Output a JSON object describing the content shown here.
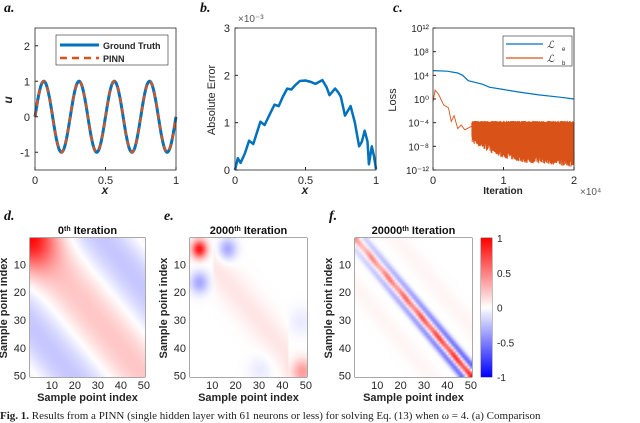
{
  "caption": {
    "label": "Fig. 1.",
    "text": "Results from a PINN (single hidden layer with 61 neurons or less) for solving Eq. (13) when ω = 4. (a) Comparison"
  },
  "chart_data": [
    {
      "panel": "a.",
      "type": "line",
      "xlabel": "x",
      "ylabel": "u",
      "xlim": [
        0,
        1
      ],
      "ylim": [
        -1.5,
        2.5
      ],
      "xticks": [
        "0",
        "0.5",
        "1"
      ],
      "xtick_values": [
        0,
        0.5,
        1
      ],
      "yticks": [
        "-1",
        "0",
        "1",
        "2"
      ],
      "ytick_values": [
        -1,
        0,
        1,
        2
      ],
      "legend_position": "top-right",
      "series": [
        {
          "name": "Ground Truth",
          "function": "sin(8πx)",
          "color": "#0072BD",
          "style": "solid"
        },
        {
          "name": "PINN",
          "function": "sin(8πx)",
          "color": "#D95319",
          "style": "dashed"
        }
      ]
    },
    {
      "panel": "b.",
      "type": "line",
      "xlabel": "x",
      "ylabel": "Absolute Error",
      "y_multiplier": "×10⁻³",
      "xlim": [
        0,
        1
      ],
      "ylim": [
        0,
        3
      ],
      "xticks": [
        "0",
        "0.5",
        "1"
      ],
      "xtick_values": [
        0,
        0.5,
        1
      ],
      "yticks": [
        "0",
        "1",
        "2",
        "3"
      ],
      "ytick_values": [
        0,
        1,
        2,
        3
      ],
      "series": [
        {
          "color": "#0072BD",
          "x": [
            0,
            0.02,
            0.04,
            0.07,
            0.1,
            0.13,
            0.18,
            0.21,
            0.25,
            0.28,
            0.31,
            0.34,
            0.37,
            0.4,
            0.43,
            0.46,
            0.5,
            0.54,
            0.57,
            0.62,
            0.65,
            0.67,
            0.71,
            0.73,
            0.75,
            0.78,
            0.82,
            0.85,
            0.88,
            0.9,
            0.92,
            0.94,
            0.95,
            0.97,
            0.985,
            1.0
          ],
          "y": [
            0.0,
            0.25,
            0.15,
            0.35,
            0.62,
            0.55,
            1.02,
            0.95,
            1.2,
            1.38,
            1.35,
            1.55,
            1.72,
            1.7,
            1.8,
            1.88,
            1.89,
            1.86,
            1.82,
            1.9,
            1.75,
            1.58,
            1.72,
            1.65,
            1.55,
            1.15,
            1.35,
            1.0,
            0.5,
            0.6,
            0.83,
            0.6,
            0.12,
            0.5,
            0.3,
            0.02
          ]
        }
      ]
    },
    {
      "panel": "c.",
      "type": "line",
      "xlabel": "Iteration",
      "ylabel": "Loss",
      "x_multiplier": "×10⁴",
      "xlim": [
        0,
        2
      ],
      "ylim": [
        1e-12,
        1000000000000.0
      ],
      "yscale": "log",
      "xticks": [
        "0",
        "1",
        "2"
      ],
      "xtick_values": [
        0,
        1,
        2
      ],
      "yticks": [
        "10⁻¹²",
        "10⁻⁸",
        "10⁻⁴",
        "10⁰",
        "10⁴",
        "10⁸",
        "10¹²"
      ],
      "ytick_exponents": [
        -12,
        -8,
        -4,
        0,
        4,
        8,
        12
      ],
      "legend_position": "top-right",
      "series": [
        {
          "name": "ℒ_e",
          "legend_main": "ℒ",
          "legend_sub": "e",
          "color": "#0072BD",
          "x": [
            0,
            0.2,
            0.35,
            0.42,
            0.5,
            0.6,
            0.7,
            0.8,
            1.0,
            1.2,
            1.5,
            1.8,
            2.0
          ],
          "log10_y": [
            4.8,
            4.7,
            4.4,
            4.0,
            3.1,
            2.8,
            2.5,
            2.0,
            1.6,
            1.2,
            0.7,
            0.3,
            0.0
          ]
        },
        {
          "name": "ℒ_b",
          "legend_main": "ℒ",
          "legend_sub": "b",
          "color": "#D95319",
          "x": [
            0,
            0.03,
            0.08,
            0.15,
            0.22,
            0.26,
            0.3,
            0.35,
            0.4,
            0.45,
            0.55
          ],
          "log10_y": [
            -0.5,
            1.5,
            0.8,
            -1.0,
            -1.5,
            -3.8,
            -2.8,
            -5.0,
            -4.4,
            -5.2,
            -4.6
          ],
          "noisy_band_from_x": 0.55,
          "band_upper_log10": -4.0,
          "band_lower_x": [
            0.55,
            0.8,
            1.0,
            1.3,
            1.6,
            2.0
          ],
          "band_lower_log10": [
            -7.5,
            -9.0,
            -10.0,
            -10.8,
            -11.0,
            -11.5
          ]
        }
      ]
    },
    {
      "panel": "d.",
      "type": "heatmap",
      "title_main": "0",
      "title_sup": "th",
      "title_rest": " Iteration",
      "xlabel": "Sample point index",
      "ylabel": "Sample point index",
      "size": 50,
      "xticks": [
        "10",
        "20",
        "30",
        "40",
        "50"
      ],
      "yticks": [
        "10",
        "20",
        "30",
        "40",
        "50"
      ],
      "tick_values": [
        10,
        20,
        30,
        40,
        50
      ]
    },
    {
      "panel": "e.",
      "type": "heatmap",
      "title_main": "2000",
      "title_sup": "th",
      "title_rest": " Iteration",
      "xlabel": "Sample point index",
      "ylabel": "Sample point index",
      "size": 50,
      "xticks": [
        "10",
        "20",
        "30",
        "40",
        "50"
      ],
      "yticks": [
        "10",
        "20",
        "30",
        "40",
        "50"
      ],
      "tick_values": [
        10,
        20,
        30,
        40,
        50
      ]
    },
    {
      "panel": "f.",
      "type": "heatmap",
      "title_main": "20000",
      "title_sup": "th",
      "title_rest": " Iteration",
      "xlabel": "Sample point index",
      "ylabel": "Sample point index",
      "size": 50,
      "xticks": [
        "10",
        "20",
        "30",
        "40",
        "50"
      ],
      "yticks": [
        "10",
        "20",
        "30",
        "40",
        "50"
      ],
      "tick_values": [
        10,
        20,
        30,
        40,
        50
      ],
      "colorbar": {
        "clim": [
          -1,
          1
        ],
        "ticks": [
          "1",
          "0.5",
          "0",
          "-0.5",
          "-1"
        ],
        "tick_values": [
          1,
          0.5,
          0,
          -0.5,
          -1
        ],
        "low_color": "#0000FF",
        "mid_color": "#FFFFFF",
        "high_color": "#FF0000"
      }
    }
  ]
}
